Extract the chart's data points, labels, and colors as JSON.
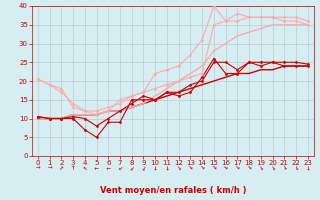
{
  "background_color": "#d6eef2",
  "grid_color": "#b0c8cc",
  "xlabel": "Vent moyen/en rafales ( km/h )",
  "xlabel_color": "#cc0000",
  "xlabel_fontsize": 6,
  "tick_color": "#cc0000",
  "tick_fontsize": 5,
  "xlim": [
    -0.5,
    23.5
  ],
  "ylim": [
    0,
    40
  ],
  "yticks": [
    0,
    5,
    10,
    15,
    20,
    25,
    30,
    35,
    40
  ],
  "xticks": [
    0,
    1,
    2,
    3,
    4,
    5,
    6,
    7,
    8,
    9,
    10,
    11,
    12,
    13,
    14,
    15,
    16,
    17,
    18,
    19,
    20,
    21,
    22,
    23
  ],
  "lines": [
    {
      "x": [
        0,
        1,
        2,
        3,
        4,
        5,
        6,
        7,
        8,
        9,
        10,
        11,
        12,
        13,
        14,
        15,
        16,
        17,
        18,
        19,
        20,
        21,
        22,
        23
      ],
      "y": [
        10.5,
        10,
        10,
        10,
        7,
        5,
        9,
        9,
        15,
        15,
        15,
        17,
        16,
        17,
        21,
        26,
        22,
        22,
        25,
        24,
        25,
        25,
        25,
        24.5
      ],
      "color": "#cc0000",
      "lw": 0.8,
      "marker": "D",
      "ms": 1.5
    },
    {
      "x": [
        0,
        1,
        2,
        3,
        4,
        5,
        6,
        7,
        8,
        9,
        10,
        11,
        12,
        13,
        14,
        15,
        16,
        17,
        18,
        19,
        20,
        21,
        22,
        23
      ],
      "y": [
        10.5,
        10,
        10,
        10.5,
        10,
        8,
        10,
        12,
        14,
        16,
        15,
        17,
        17,
        19,
        20,
        25,
        25,
        23,
        25,
        25,
        25,
        24,
        24,
        24
      ],
      "color": "#cc0000",
      "lw": 0.8,
      "marker": "D",
      "ms": 1.5
    },
    {
      "x": [
        0,
        1,
        2,
        3,
        4,
        5,
        6,
        7,
        8,
        9,
        10,
        11,
        12,
        13,
        14,
        15,
        16,
        17,
        18,
        19,
        20,
        21,
        22,
        23
      ],
      "y": [
        10,
        10,
        10,
        11,
        11,
        11,
        12,
        12,
        13,
        14,
        15,
        16,
        17,
        18,
        19,
        20,
        21,
        22,
        22,
        23,
        23,
        24,
        24,
        24
      ],
      "color": "#cc0000",
      "lw": 1.0,
      "marker": null,
      "ms": 0
    },
    {
      "x": [
        0,
        1,
        2,
        3,
        4,
        5,
        6,
        7,
        8,
        9,
        10,
        11,
        12,
        13,
        14,
        15,
        16,
        17,
        18,
        19,
        20,
        21,
        22,
        23
      ],
      "y": [
        20.5,
        19,
        18,
        13,
        12,
        11,
        12,
        15,
        16,
        17,
        18,
        19,
        20,
        21,
        22,
        35,
        36,
        36,
        37,
        37,
        37,
        36,
        36,
        35
      ],
      "color": "#ffaaaa",
      "lw": 0.8,
      "marker": "D",
      "ms": 1.5
    },
    {
      "x": [
        0,
        1,
        2,
        3,
        4,
        5,
        6,
        7,
        8,
        9,
        10,
        11,
        12,
        13,
        14,
        15,
        16,
        17,
        18,
        19,
        20,
        21,
        22,
        23
      ],
      "y": [
        20.5,
        19,
        17,
        14,
        12,
        12,
        13,
        14,
        16,
        17,
        22,
        23,
        24,
        27,
        31,
        40,
        36,
        38,
        37,
        37,
        37,
        37,
        37,
        36
      ],
      "color": "#ffaaaa",
      "lw": 0.8,
      "marker": "D",
      "ms": 1.5
    },
    {
      "x": [
        0,
        1,
        2,
        3,
        4,
        5,
        6,
        7,
        8,
        9,
        10,
        11,
        12,
        13,
        14,
        15,
        16,
        17,
        18,
        19,
        20,
        21,
        22,
        23
      ],
      "y": [
        10,
        10,
        10,
        11,
        11,
        11,
        12,
        12,
        13,
        14,
        16,
        18,
        20,
        22,
        24,
        28,
        30,
        32,
        33,
        34,
        35,
        35,
        35,
        35
      ],
      "color": "#ffaaaa",
      "lw": 1.0,
      "marker": null,
      "ms": 0
    }
  ],
  "wind_arrow_angles": [
    0,
    0,
    45,
    90,
    135,
    180,
    180,
    210,
    225,
    240,
    270,
    270,
    300,
    315,
    315,
    315,
    330,
    315,
    315,
    300,
    300,
    290,
    280,
    270
  ],
  "wind_arrow_color": "#cc0000",
  "arrow_fontsize": 4
}
